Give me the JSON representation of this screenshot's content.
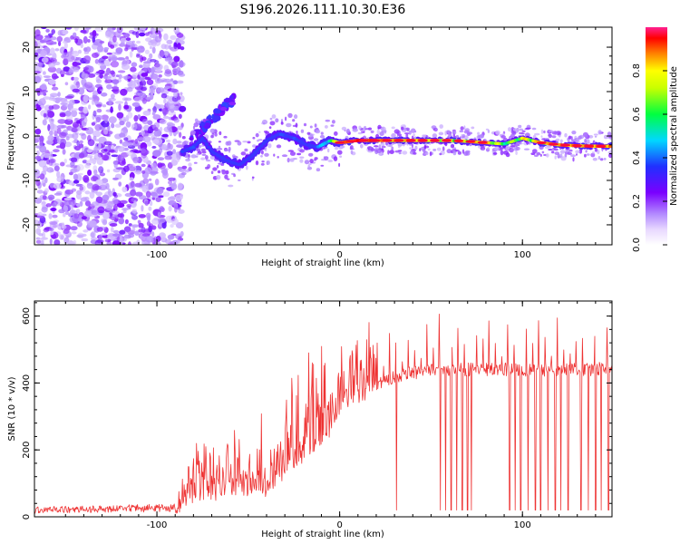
{
  "figure_title": "S196.2026.111.10.30.E36",
  "chart_data": [
    {
      "type": "heatmap",
      "title": "S196.2026.111.10.30.E36",
      "xlabel": "Height of straight line (km)",
      "ylabel": "Frequency (Hz)",
      "xlim": [
        -167,
        149
      ],
      "ylim": [
        -24.5,
        24.5
      ],
      "x_ticks": [
        -100,
        0,
        100
      ],
      "y_ticks": [
        -20,
        -10,
        0,
        10,
        20
      ],
      "colorbar": {
        "label": "Normalized spectral amplitude",
        "range": [
          0.0,
          1.0
        ],
        "ticks": [
          "0.0",
          "0.2",
          "0.4",
          "0.6",
          "0.8"
        ],
        "colormap": [
          "#ffffff",
          "#b48cff",
          "#7a00ff",
          "#3040ff",
          "#00d8ff",
          "#00ff40",
          "#ffff00",
          "#ff8000",
          "#ff0000",
          "#ff2090"
        ]
      },
      "noise_region_x": [
        -167,
        -86
      ],
      "ridge": {
        "x": [
          -86,
          -80,
          -75,
          -70,
          -62,
          -55,
          -48,
          -40,
          -33,
          -25,
          -18,
          -12,
          -5,
          0,
          10,
          20,
          30,
          40,
          50,
          60,
          70,
          80,
          90,
          100,
          110,
          120,
          130,
          140,
          149
        ],
        "frequency": [
          -3.5,
          -2.5,
          -0.5,
          -3.5,
          -5.5,
          -6.5,
          -4.5,
          -1.0,
          0.5,
          -0.5,
          -2.0,
          -2.5,
          -1.0,
          -1.5,
          -1.0,
          -1.0,
          -1.0,
          -1.0,
          -1.0,
          -1.0,
          -1.2,
          -1.5,
          -1.8,
          -0.5,
          -1.5,
          -2.0,
          -2.2,
          -2.3,
          -2.3
        ],
        "amplitude": [
          0.35,
          0.35,
          0.25,
          0.3,
          0.3,
          0.3,
          0.25,
          0.3,
          0.35,
          0.35,
          0.3,
          0.4,
          0.55,
          0.8,
          0.9,
          0.85,
          0.8,
          0.85,
          0.8,
          0.75,
          0.75,
          0.8,
          0.6,
          0.7,
          0.75,
          0.8,
          0.85,
          0.9,
          0.9
        ]
      },
      "side_branch": {
        "x": [
          -82,
          -76,
          -70,
          -64,
          -58
        ],
        "frequency": [
          -1.5,
          1.5,
          4.0,
          6.0,
          8.5
        ]
      }
    },
    {
      "type": "line",
      "title": "",
      "xlabel": "Height of straight line (km)",
      "ylabel": "SNR (10 * v/v)",
      "xlim": [
        -167,
        149
      ],
      "ylim": [
        0,
        645
      ],
      "x_ticks": [
        -100,
        0,
        100
      ],
      "y_ticks": [
        0,
        200,
        400,
        600
      ],
      "line_color": "#ee3333",
      "envelope": {
        "x": [
          -167,
          -90,
          -80,
          -70,
          -60,
          -50,
          -40,
          -30,
          -20,
          -10,
          0,
          10,
          20,
          30,
          40,
          50,
          60,
          70,
          80,
          90,
          100,
          110,
          120,
          130,
          140,
          149
        ],
        "baseline": [
          10,
          15,
          60,
          60,
          80,
          70,
          80,
          130,
          180,
          220,
          300,
          350,
          390,
          420,
          430,
          440,
          440,
          440,
          440,
          440,
          440,
          440,
          440,
          440,
          440,
          450
        ],
        "peak": [
          35,
          45,
          220,
          260,
          260,
          280,
          260,
          380,
          470,
          480,
          500,
          540,
          580,
          600,
          610,
          615,
          615,
          620,
          620,
          630,
          635,
          630,
          620,
          620,
          620,
          600
        ]
      },
      "dropouts_x": [
        31,
        55,
        58,
        61,
        64,
        67,
        70,
        72,
        93,
        96,
        99,
        103,
        107,
        110,
        114,
        118,
        121,
        125,
        132,
        136,
        140,
        143,
        147
      ]
    }
  ]
}
